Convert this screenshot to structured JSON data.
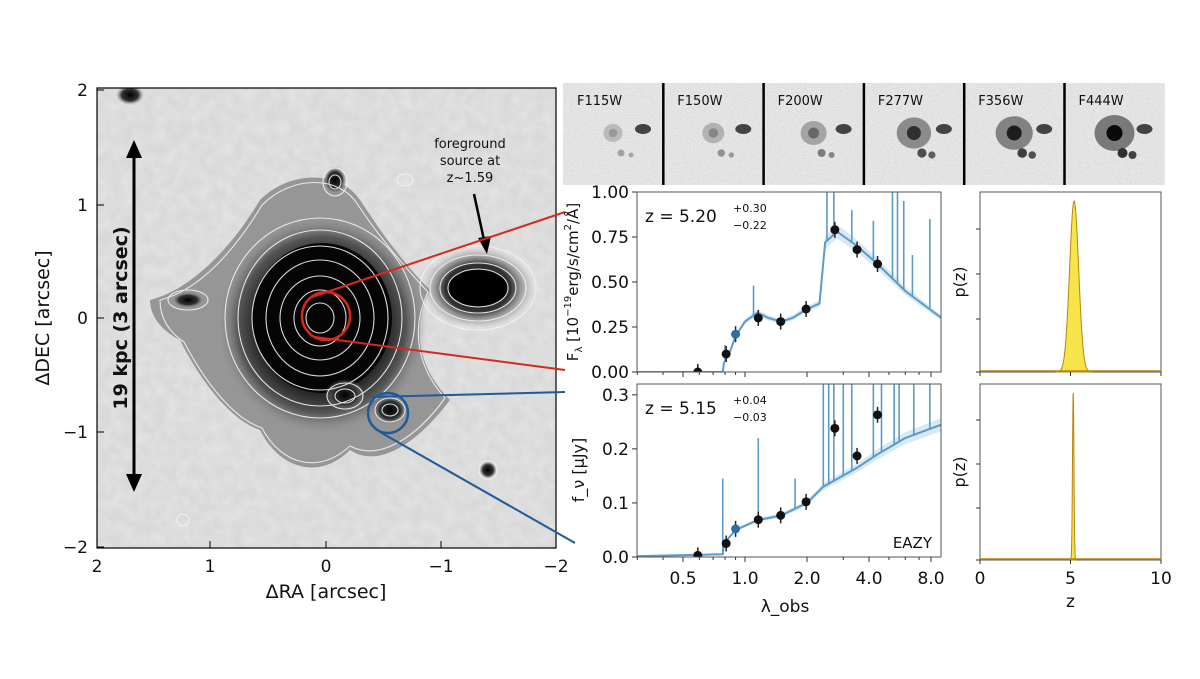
{
  "image_panel": {
    "xlabel": "ΔRA [arcsec]",
    "ylabel": "ΔDEC [arcsec]",
    "xticks": [
      "2",
      "1",
      "0",
      "−1",
      "−2"
    ],
    "yticks": [
      "2",
      "1",
      "0",
      "−1",
      "−2"
    ],
    "scale_bar_label": "19 kpc (3 arcsec)",
    "annotation_lines": [
      "foreground",
      "source at",
      "z~1.59"
    ],
    "colors": {
      "red_circle": "#d8281e",
      "blue_circle": "#1f5a99"
    }
  },
  "cutouts": [
    "F115W",
    "F150W",
    "F200W",
    "F277W",
    "F356W",
    "F444W"
  ],
  "chart_data": [
    {
      "type": "scatter",
      "panel": "sed-top",
      "ylabel": "F_λ [10^-19 erg/s/cm²/Å]",
      "ylabel_parts": {
        "pre": "F",
        "sub": "λ",
        "unit_pre": " [10",
        "exp": "−19",
        "unit_post": "erg/s/cm",
        "sq": "2",
        "unit_end": "/Å]"
      },
      "annotation": {
        "z": "z = 5.20",
        "plus": "+0.30",
        "minus": "−0.22"
      },
      "ylim": [
        0,
        1.0
      ],
      "yticks": [
        "0.00",
        "0.25",
        "0.50",
        "0.75",
        "1.00"
      ],
      "xscale": "log",
      "xlim": [
        0.19,
        9.0
      ],
      "points": {
        "lambda": [
          0.59,
          0.81,
          0.9,
          1.16,
          1.49,
          1.98,
          2.73,
          3.5,
          4.4
        ],
        "value": [
          0.0,
          0.1,
          0.21,
          0.3,
          0.28,
          0.35,
          0.79,
          0.68,
          0.6
        ]
      },
      "model": [
        [
          0.19,
          0
        ],
        [
          0.78,
          0
        ],
        [
          0.79,
          0.05
        ],
        [
          0.85,
          0.12
        ],
        [
          0.9,
          0.2
        ],
        [
          1.0,
          0.28
        ],
        [
          1.15,
          0.33
        ],
        [
          1.3,
          0.3
        ],
        [
          1.5,
          0.28
        ],
        [
          1.7,
          0.3
        ],
        [
          2.0,
          0.35
        ],
        [
          2.3,
          0.38
        ],
        [
          2.45,
          0.72
        ],
        [
          2.8,
          0.78
        ],
        [
          3.5,
          0.7
        ],
        [
          4.4,
          0.6
        ],
        [
          6,
          0.45
        ],
        [
          9,
          0.3
        ]
      ],
      "emission_spikes": [
        [
          0.8,
          0.15
        ],
        [
          1.1,
          0.48
        ],
        [
          2.5,
          1.0
        ],
        [
          2.7,
          1.0
        ],
        [
          3.3,
          0.9
        ],
        [
          4.2,
          0.84
        ],
        [
          5.2,
          1.0
        ],
        [
          5.5,
          1.0
        ],
        [
          5.9,
          0.95
        ],
        [
          6.5,
          0.65
        ],
        [
          7.9,
          0.85
        ]
      ],
      "colors": {
        "model": "#5b9bc8",
        "points": "#111111",
        "model_points": "#2a6fa8"
      }
    },
    {
      "type": "scatter",
      "panel": "sed-bottom",
      "ylabel": "f_ν [μJy]",
      "ylabel_parts": {
        "pre": "f",
        "sub": "ν",
        "unit": " [μJy]"
      },
      "annotation": {
        "z": "z = 5.15",
        "plus": "+0.04",
        "minus": "−0.03"
      },
      "label": "EAZY",
      "xlabel": "λ_obs",
      "xlabel_parts": {
        "pre": "λ",
        "sub": "obs"
      },
      "ylim": [
        0,
        0.32
      ],
      "yticks": [
        "0.0",
        "0.1",
        "0.2",
        "0.3"
      ],
      "xscale": "log",
      "xlim": [
        0.19,
        9.0
      ],
      "xticks": [
        "0.5",
        "1.0",
        "2.0",
        "4.0",
        "8.0"
      ],
      "points": {
        "lambda": [
          0.59,
          0.81,
          0.9,
          1.16,
          1.49,
          1.98,
          2.73,
          3.5,
          4.4
        ],
        "value": [
          0.003,
          0.025,
          0.052,
          0.069,
          0.077,
          0.102,
          0.238,
          0.187,
          0.263
        ]
      },
      "model": [
        [
          0.19,
          0
        ],
        [
          0.78,
          0.005
        ],
        [
          0.79,
          0.025
        ],
        [
          0.9,
          0.05
        ],
        [
          1.15,
          0.068
        ],
        [
          1.5,
          0.077
        ],
        [
          2.0,
          0.1
        ],
        [
          2.4,
          0.13
        ],
        [
          3.5,
          0.165
        ],
        [
          4.4,
          0.19
        ],
        [
          6,
          0.22
        ],
        [
          9,
          0.245
        ]
      ],
      "emission_spikes": [
        [
          0.78,
          0.145
        ],
        [
          1.16,
          0.22
        ],
        [
          1.75,
          0.145
        ],
        [
          2.4,
          0.32
        ],
        [
          2.55,
          0.32
        ],
        [
          2.7,
          0.32
        ],
        [
          3.0,
          0.32
        ],
        [
          3.3,
          0.32
        ],
        [
          4.2,
          0.32
        ],
        [
          4.6,
          0.32
        ],
        [
          5.3,
          0.32
        ],
        [
          5.6,
          0.32
        ],
        [
          6.6,
          0.32
        ],
        [
          7.9,
          0.32
        ]
      ],
      "colors": {
        "model": "#5b9bc8",
        "points": "#111111",
        "model_points": "#2a6fa8"
      }
    },
    {
      "type": "area",
      "panel": "pz-top",
      "ylabel": "p(z)",
      "xlim": [
        0,
        10
      ],
      "peak_z": 5.2,
      "sigma": 0.25,
      "colors": {
        "fill": "#f7e44a",
        "line": "#b8860b"
      }
    },
    {
      "type": "area",
      "panel": "pz-bottom",
      "ylabel": "p(z)",
      "xlabel": "z",
      "xlim": [
        0,
        10
      ],
      "xticks": [
        "0",
        "5",
        "10"
      ],
      "peak_z": 5.15,
      "sigma": 0.04,
      "colors": {
        "fill": "#f7e44a",
        "line": "#b8860b"
      }
    }
  ]
}
